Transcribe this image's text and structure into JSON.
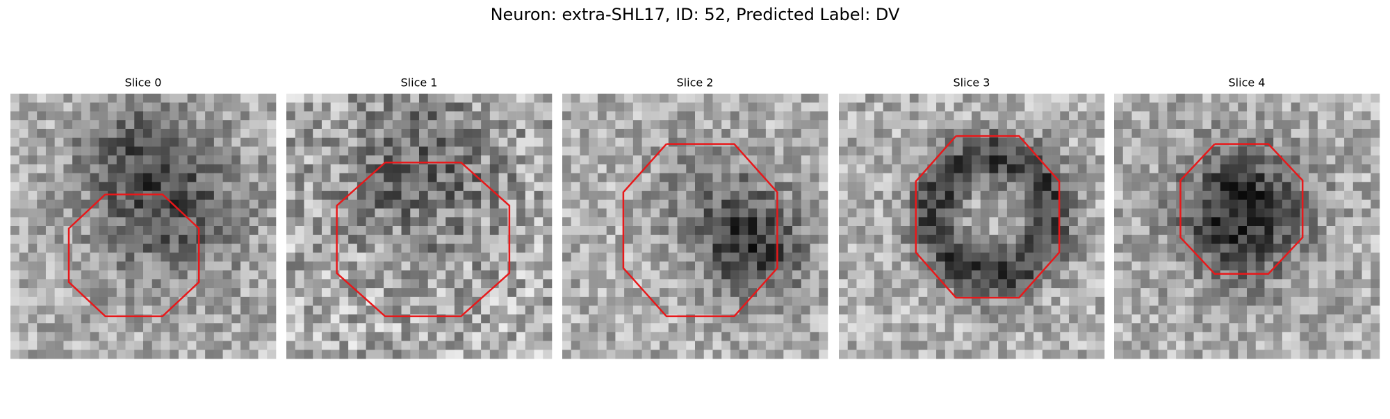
{
  "figure": {
    "title": "Neuron: extra-SHL17, ID: 52, Predicted Label: DV",
    "panels": [
      {
        "title": "Slice 0"
      },
      {
        "title": "Slice 1"
      },
      {
        "title": "Slice 2"
      },
      {
        "title": "Slice 3"
      },
      {
        "title": "Slice 4"
      }
    ]
  }
}
